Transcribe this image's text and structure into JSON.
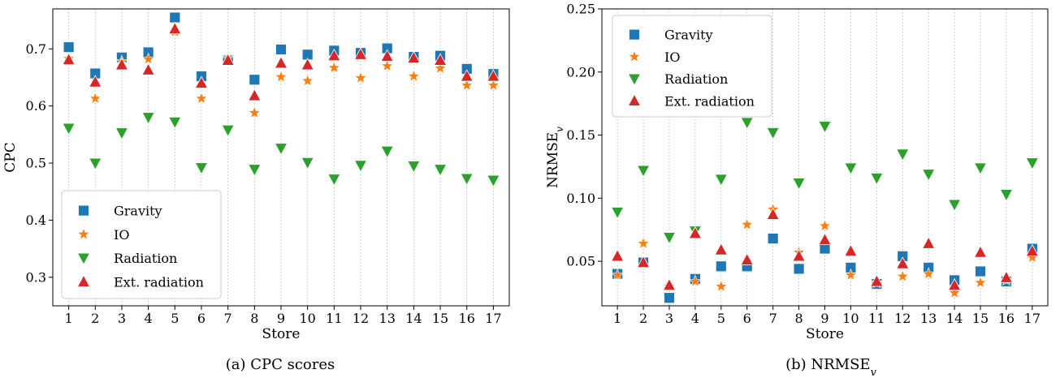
{
  "chart_data": [
    {
      "type": "scatter",
      "caption": "(a) CPC scores",
      "xlabel": "Store",
      "ylabel": "CPC",
      "x": [
        1,
        2,
        3,
        4,
        5,
        6,
        7,
        8,
        9,
        10,
        11,
        12,
        13,
        14,
        15,
        16,
        17
      ],
      "xlim": [
        0.4,
        17.6
      ],
      "ylim": [
        0.25,
        0.77
      ],
      "yticks": [
        0.3,
        0.4,
        0.5,
        0.6,
        0.7
      ],
      "ytick_labels": [
        "0.3",
        "0.4",
        "0.5",
        "0.6",
        "0.7"
      ],
      "grid": "vertical dotted",
      "legend_position": "lower-left",
      "series": [
        {
          "name": "Gravity",
          "marker": "square",
          "color": "#1f77b4",
          "values": [
            0.703,
            0.657,
            0.685,
            0.694,
            0.755,
            0.652,
            0.68,
            0.646,
            0.699,
            0.69,
            0.697,
            0.693,
            0.701,
            0.686,
            0.688,
            0.665,
            0.656
          ]
        },
        {
          "name": "IO",
          "marker": "star",
          "color": "#ff7f0e",
          "values": [
            0.683,
            0.613,
            0.678,
            0.682,
            0.73,
            0.613,
            0.684,
            0.588,
            0.651,
            0.644,
            0.667,
            0.649,
            0.67,
            0.652,
            0.666,
            0.636,
            0.636
          ]
        },
        {
          "name": "Radiation",
          "marker": "triangle-down",
          "color": "#2ca02c",
          "values": [
            0.561,
            0.5,
            0.553,
            0.58,
            0.572,
            0.492,
            0.558,
            0.489,
            0.526,
            0.501,
            0.472,
            0.496,
            0.521,
            0.495,
            0.489,
            0.473,
            0.47
          ]
        },
        {
          "name": "Ext. radiation",
          "marker": "triangle-up",
          "color": "#d62728",
          "values": [
            0.681,
            0.642,
            0.672,
            0.663,
            0.735,
            0.64,
            0.68,
            0.618,
            0.675,
            0.672,
            0.688,
            0.69,
            0.687,
            0.684,
            0.68,
            0.652,
            0.652
          ]
        }
      ]
    },
    {
      "type": "scatter",
      "caption": "(b) NRMSE_v",
      "xlabel": "Store",
      "ylabel": "NRMSE_v",
      "x": [
        1,
        2,
        3,
        4,
        5,
        6,
        7,
        8,
        9,
        10,
        11,
        12,
        13,
        14,
        15,
        16,
        17
      ],
      "xlim": [
        0.4,
        17.6
      ],
      "ylim": [
        0.0147,
        0.25
      ],
      "yticks": [
        0.05,
        0.1,
        0.15,
        0.2,
        0.25
      ],
      "ytick_labels": [
        "0.05",
        "0.10",
        "0.15",
        "0.20",
        "0.25"
      ],
      "grid": "vertical dotted",
      "legend_position": "top-left",
      "series": [
        {
          "name": "Gravity",
          "marker": "square",
          "color": "#1f77b4",
          "values": [
            0.04,
            0.049,
            0.021,
            0.036,
            0.046,
            0.046,
            0.068,
            0.044,
            0.06,
            0.045,
            0.032,
            0.054,
            0.045,
            0.035,
            0.042,
            0.034,
            0.06
          ]
        },
        {
          "name": "IO",
          "marker": "star",
          "color": "#ff7f0e",
          "values": [
            0.039,
            0.064,
            0.03,
            0.034,
            0.03,
            0.079,
            0.091,
            0.057,
            0.078,
            0.039,
            0.033,
            0.038,
            0.04,
            0.025,
            0.033,
            0.035,
            0.053
          ]
        },
        {
          "name": "Radiation",
          "marker": "triangle-down",
          "color": "#2ca02c",
          "values": [
            0.089,
            0.122,
            0.069,
            0.074,
            0.115,
            0.16,
            0.152,
            0.112,
            0.157,
            0.124,
            0.116,
            0.135,
            0.119,
            0.095,
            0.124,
            0.103,
            0.128
          ]
        },
        {
          "name": "Ext. radiation",
          "marker": "triangle-up",
          "color": "#d62728",
          "values": [
            0.054,
            0.049,
            0.031,
            0.072,
            0.059,
            0.051,
            0.087,
            0.054,
            0.067,
            0.058,
            0.034,
            0.048,
            0.064,
            0.031,
            0.057,
            0.037,
            0.058
          ]
        }
      ]
    }
  ]
}
